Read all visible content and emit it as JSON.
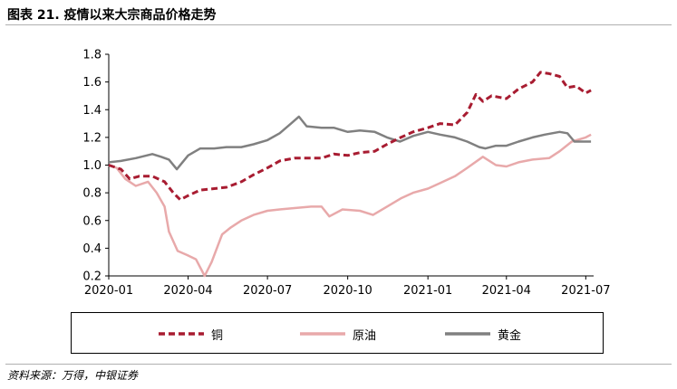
{
  "header": {
    "title": "图表 21. 疫情以来大宗商品价格走势"
  },
  "footer": {
    "source": "资料来源：万得，中银证券"
  },
  "colors": {
    "copper": "#a81c31",
    "oil": "#e8a9aa",
    "gold": "#808080"
  },
  "chart_data": {
    "type": "line",
    "title": "",
    "xlabel": "",
    "ylabel": "",
    "ylim": [
      0.2,
      1.8
    ],
    "yticks": [
      "0.2",
      "0.4",
      "0.6",
      "0.8",
      "1.0",
      "1.2",
      "1.4",
      "1.6",
      "1.8"
    ],
    "xlim": [
      "2020-01-01",
      "2021-07-10"
    ],
    "xticks": [
      "2020-01",
      "2020-04",
      "2020-07",
      "2020-10",
      "2021-01",
      "2021-04",
      "2021-07"
    ],
    "grid": false,
    "legend_position": "bottom",
    "series": [
      {
        "name": "铜",
        "style": "dashed",
        "color": "#a81c31",
        "x": [
          "2020-01-01",
          "2020-01-15",
          "2020-01-25",
          "2020-02-05",
          "2020-02-20",
          "2020-03-05",
          "2020-03-15",
          "2020-03-23",
          "2020-04-01",
          "2020-04-15",
          "2020-05-01",
          "2020-05-15",
          "2020-06-01",
          "2020-06-15",
          "2020-07-01",
          "2020-07-15",
          "2020-08-01",
          "2020-08-15",
          "2020-09-01",
          "2020-09-15",
          "2020-10-01",
          "2020-10-15",
          "2020-11-01",
          "2020-11-15",
          "2020-12-01",
          "2020-12-15",
          "2021-01-01",
          "2021-01-15",
          "2021-02-01",
          "2021-02-15",
          "2021-02-25",
          "2021-03-05",
          "2021-03-15",
          "2021-04-01",
          "2021-04-15",
          "2021-05-01",
          "2021-05-10",
          "2021-05-20",
          "2021-06-01",
          "2021-06-10",
          "2021-06-20",
          "2021-07-01",
          "2021-07-07"
        ],
        "values": [
          1.0,
          0.97,
          0.9,
          0.92,
          0.92,
          0.88,
          0.8,
          0.75,
          0.78,
          0.82,
          0.83,
          0.84,
          0.88,
          0.93,
          0.98,
          1.03,
          1.05,
          1.05,
          1.05,
          1.08,
          1.07,
          1.09,
          1.1,
          1.15,
          1.2,
          1.24,
          1.27,
          1.3,
          1.29,
          1.38,
          1.51,
          1.46,
          1.5,
          1.48,
          1.55,
          1.6,
          1.67,
          1.66,
          1.64,
          1.56,
          1.57,
          1.52,
          1.54
        ]
      },
      {
        "name": "原油",
        "style": "solid",
        "color": "#e8a9aa",
        "x": [
          "2020-01-01",
          "2020-01-10",
          "2020-01-20",
          "2020-02-01",
          "2020-02-15",
          "2020-02-25",
          "2020-03-05",
          "2020-03-10",
          "2020-03-20",
          "2020-03-31",
          "2020-04-10",
          "2020-04-20",
          "2020-04-28",
          "2020-05-10",
          "2020-05-20",
          "2020-06-01",
          "2020-06-15",
          "2020-07-01",
          "2020-07-15",
          "2020-08-01",
          "2020-08-20",
          "2020-09-01",
          "2020-09-10",
          "2020-09-25",
          "2020-10-15",
          "2020-10-30",
          "2020-11-15",
          "2020-12-01",
          "2020-12-15",
          "2021-01-01",
          "2021-01-15",
          "2021-02-01",
          "2021-02-15",
          "2021-03-05",
          "2021-03-20",
          "2021-04-01",
          "2021-04-15",
          "2021-05-01",
          "2021-05-20",
          "2021-06-01",
          "2021-06-15",
          "2021-07-01",
          "2021-07-07"
        ],
        "values": [
          1.0,
          0.98,
          0.9,
          0.85,
          0.88,
          0.8,
          0.7,
          0.52,
          0.38,
          0.35,
          0.32,
          0.2,
          0.3,
          0.5,
          0.55,
          0.6,
          0.64,
          0.67,
          0.68,
          0.69,
          0.7,
          0.7,
          0.63,
          0.68,
          0.67,
          0.64,
          0.7,
          0.76,
          0.8,
          0.83,
          0.87,
          0.92,
          0.98,
          1.06,
          1.0,
          0.99,
          1.02,
          1.04,
          1.05,
          1.1,
          1.17,
          1.2,
          1.22
        ]
      },
      {
        "name": "黄金",
        "style": "solid",
        "color": "#808080",
        "x": [
          "2020-01-01",
          "2020-01-15",
          "2020-02-01",
          "2020-02-20",
          "2020-03-01",
          "2020-03-10",
          "2020-03-19",
          "2020-04-01",
          "2020-04-15",
          "2020-05-01",
          "2020-05-15",
          "2020-06-01",
          "2020-06-15",
          "2020-07-01",
          "2020-07-15",
          "2020-07-28",
          "2020-08-06",
          "2020-08-15",
          "2020-09-01",
          "2020-09-15",
          "2020-10-01",
          "2020-10-15",
          "2020-11-01",
          "2020-11-15",
          "2020-11-30",
          "2020-12-15",
          "2021-01-01",
          "2021-01-15",
          "2021-02-01",
          "2021-02-15",
          "2021-03-01",
          "2021-03-08",
          "2021-03-20",
          "2021-04-01",
          "2021-04-15",
          "2021-05-01",
          "2021-05-15",
          "2021-06-01",
          "2021-06-10",
          "2021-06-18",
          "2021-07-01",
          "2021-07-07"
        ],
        "values": [
          1.02,
          1.03,
          1.05,
          1.08,
          1.06,
          1.04,
          0.97,
          1.07,
          1.12,
          1.12,
          1.13,
          1.13,
          1.15,
          1.18,
          1.23,
          1.3,
          1.35,
          1.28,
          1.27,
          1.27,
          1.24,
          1.25,
          1.24,
          1.2,
          1.17,
          1.21,
          1.24,
          1.22,
          1.2,
          1.17,
          1.13,
          1.12,
          1.14,
          1.14,
          1.17,
          1.2,
          1.22,
          1.24,
          1.23,
          1.17,
          1.17,
          1.17
        ]
      }
    ]
  }
}
